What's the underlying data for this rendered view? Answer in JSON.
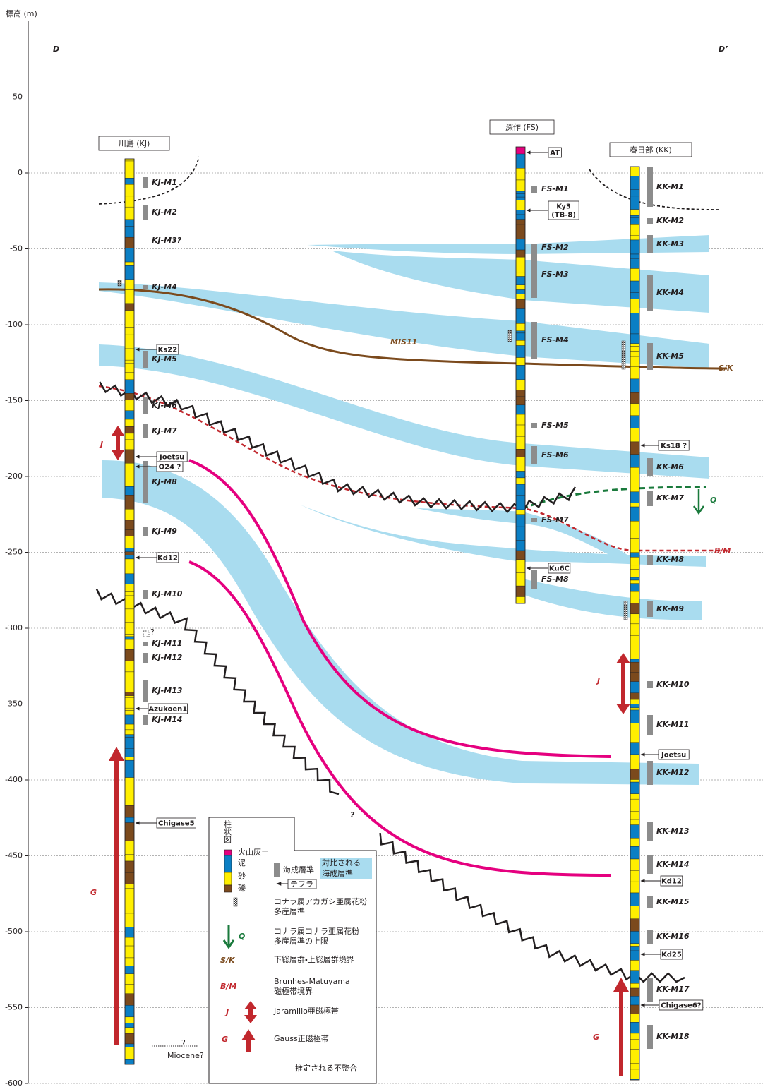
{
  "axis": {
    "label": "標高 (m)",
    "range": [
      -600,
      100
    ],
    "ticks": [
      50,
      0,
      -50,
      -100,
      -150,
      -200,
      -250,
      -300,
      -350,
      -400,
      -450,
      -500,
      -550,
      -600
    ]
  },
  "section": {
    "left": "D",
    "right": "D’"
  },
  "boreholes": [
    {
      "name": "川島 (KJ)",
      "layers": [
        "KJ-M1",
        "KJ-M2",
        "KJ-M3?",
        "KJ-M4",
        "KJ-M5",
        "KJ-M6",
        "KJ-M7",
        "KJ-M8",
        "KJ-M9",
        "KJ-M10",
        "KJ-M11",
        "KJ-M12",
        "KJ-M13",
        "KJ-M14"
      ],
      "tephras": [
        [
          "Ks22"
        ],
        [
          "Joetsu"
        ],
        [
          "O24 ?"
        ],
        [
          "Kd12"
        ],
        [
          "Azukoen1"
        ],
        [
          "Chigase5"
        ]
      ]
    },
    {
      "name": "深作 (FS)",
      "layers": [
        "FS-M1",
        "FS-M2",
        "FS-M3",
        "FS-M4",
        "FS-M5",
        "FS-M6",
        "FS-M7",
        "FS-M8"
      ],
      "tephras": [
        [
          "AT"
        ],
        [
          "Ky3",
          "(TB-8)"
        ],
        [
          "Ku6C"
        ]
      ]
    },
    {
      "name": "春日部 (KK)",
      "layers": [
        "KK-M1",
        "KK-M2",
        "KK-M3",
        "KK-M4",
        "KK-M5",
        "KK-M6",
        "KK-M7",
        "KK-M8",
        "KK-M9",
        "KK-M10",
        "KK-M11",
        "KK-M12",
        "KK-M13",
        "KK-M14",
        "KK-M15",
        "KK-M16",
        "KK-M17",
        "KK-M18"
      ],
      "tephras": [
        [
          "Ks18 ?"
        ],
        [
          "Joetsu"
        ],
        [
          "Kd12"
        ],
        [
          "Kd25"
        ],
        [
          "Chigase6?"
        ]
      ]
    }
  ],
  "labels": {
    "mis11": "MIS11",
    "sk": "S/K",
    "bm": "B/M",
    "q": "Q",
    "j_left": "J",
    "j_right": "J",
    "g_left": "G",
    "g_right": "G",
    "unknown": "?",
    "kj_m11_q": "?",
    "miocene_q": "?",
    "miocene": "Miocene?"
  },
  "legend": {
    "title": "柱状図",
    "lithology": [
      "火山灰土",
      "泥",
      "砂",
      "礫"
    ],
    "marine": "海成層準",
    "correlated": [
      "対比される",
      "海成層準"
    ],
    "tephra": "テフラ",
    "pollen_a": [
      "コナラ属アカガシ亜属花粉",
      "多産層準"
    ],
    "q_symbol": "Q",
    "pollen_q": [
      "コナラ属コナラ亜属花粉",
      "多産層準の上限"
    ],
    "sk_symbol": "S/K",
    "sk_text": "下総層群・上総層群境界",
    "bm_symbol": "B/M",
    "bm_text": [
      "Brunhes-Matuyama",
      "磁極帯境界"
    ],
    "j_symbol": "J",
    "j_text": "Jaramillo亜磁極帯",
    "g_symbol": "G",
    "g_text": "Gauss正磁極帯",
    "unconformity": "推定される不整合"
  }
}
